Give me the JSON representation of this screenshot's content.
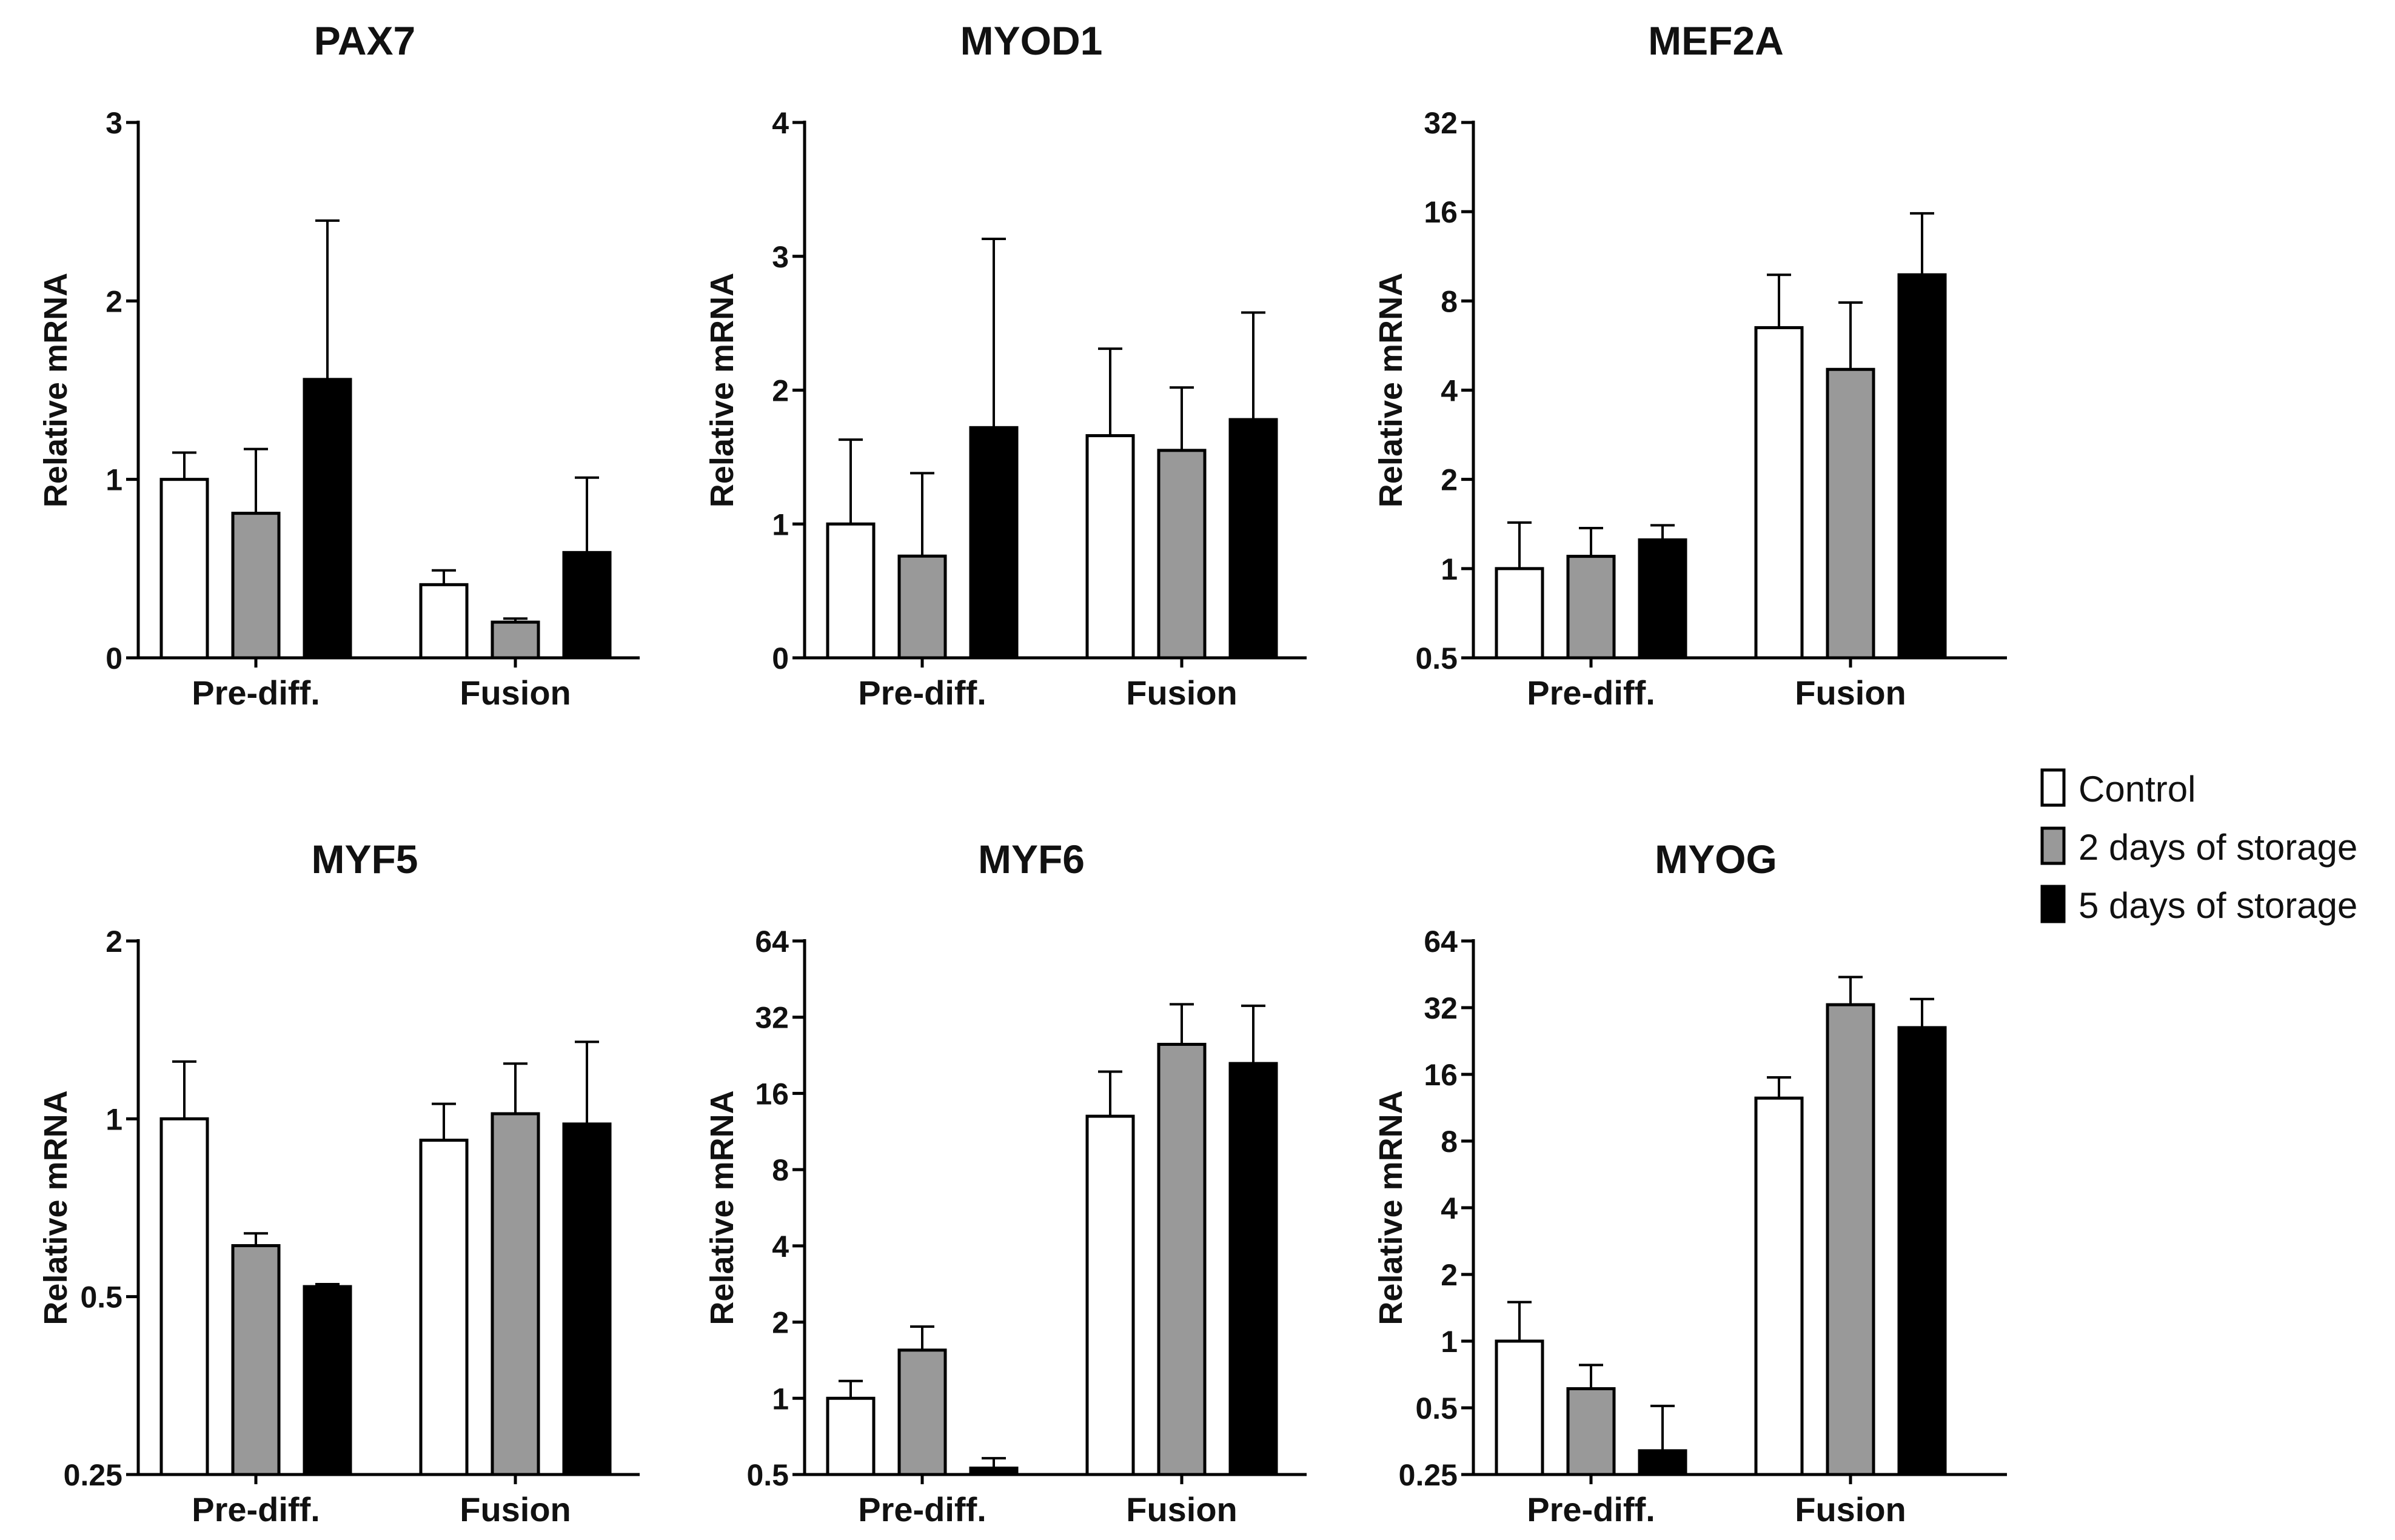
{
  "legend": {
    "position": "right",
    "entries": [
      {
        "label": "Control",
        "color": "#ffffff"
      },
      {
        "label": "2 days of storage",
        "color": "#999999"
      },
      {
        "label": "5 days of storage",
        "color": "#000000"
      }
    ]
  },
  "chart_data": [
    {
      "type": "bar",
      "title": "PAX7",
      "ylabel": "Relative mRNA",
      "yscale": "linear",
      "ylim": [
        0,
        3
      ],
      "yticks": [
        0,
        1,
        2,
        3
      ],
      "ytick_labels": [
        "0",
        "1",
        "2",
        "3"
      ],
      "categories": [
        "Pre-diff.",
        "Fusion"
      ],
      "series": [
        {
          "name": "Control",
          "values": [
            1.0,
            0.41
          ],
          "errors": [
            0.15,
            0.08
          ]
        },
        {
          "name": "2 days of storage",
          "values": [
            0.81,
            0.2
          ],
          "errors": [
            0.36,
            0.02
          ]
        },
        {
          "name": "5 days of storage",
          "values": [
            1.56,
            0.59
          ],
          "errors": [
            0.89,
            0.42
          ]
        }
      ]
    },
    {
      "type": "bar",
      "title": "MYOD1",
      "ylabel": "Relative mRNA",
      "yscale": "linear",
      "ylim": [
        0,
        4
      ],
      "yticks": [
        0,
        1,
        2,
        3,
        4
      ],
      "ytick_labels": [
        "0",
        "1",
        "2",
        "3",
        "4"
      ],
      "categories": [
        "Pre-diff.",
        "Fusion"
      ],
      "series": [
        {
          "name": "Control",
          "values": [
            1.0,
            1.66
          ],
          "errors": [
            0.63,
            0.65
          ]
        },
        {
          "name": "2 days of storage",
          "values": [
            0.76,
            1.55
          ],
          "errors": [
            0.62,
            0.47
          ]
        },
        {
          "name": "5 days of storage",
          "values": [
            1.72,
            1.78
          ],
          "errors": [
            1.41,
            0.8
          ]
        }
      ]
    },
    {
      "type": "bar",
      "title": "MEF2A",
      "ylabel": "Relative mRNA",
      "yscale": "log2",
      "ylim": [
        0.5,
        32
      ],
      "yticks": [
        0.5,
        1,
        2,
        4,
        8,
        16,
        32
      ],
      "ytick_labels": [
        "0.5",
        "1",
        "2",
        "4",
        "8",
        "16",
        "32"
      ],
      "categories": [
        "Pre-diff.",
        "Fusion"
      ],
      "series": [
        {
          "name": "Control",
          "values": [
            1.0,
            6.5
          ],
          "errors": [
            0.43,
            3.3
          ]
        },
        {
          "name": "2 days of storage",
          "values": [
            1.1,
            4.7
          ],
          "errors": [
            0.27,
            3.2
          ]
        },
        {
          "name": "5 days of storage",
          "values": [
            1.25,
            9.8
          ],
          "errors": [
            0.15,
            6.0
          ]
        }
      ]
    },
    {
      "type": "bar",
      "title": "MYF5",
      "ylabel": "Relative mRNA",
      "yscale": "log2",
      "ylim": [
        0.25,
        2
      ],
      "yticks": [
        0.25,
        0.5,
        1,
        2
      ],
      "ytick_labels": [
        "0.25",
        "0.5",
        "1",
        "2"
      ],
      "categories": [
        "Pre-diff.",
        "Fusion"
      ],
      "series": [
        {
          "name": "Control",
          "values": [
            1.0,
            0.92
          ],
          "errors": [
            0.25,
            0.14
          ]
        },
        {
          "name": "2 days of storage",
          "values": [
            0.61,
            1.02
          ],
          "errors": [
            0.03,
            0.22
          ]
        },
        {
          "name": "5 days of storage",
          "values": [
            0.52,
            0.98
          ],
          "errors": [
            0.005,
            0.37
          ]
        }
      ]
    },
    {
      "type": "bar",
      "title": "MYF6",
      "ylabel": "Relative mRNA",
      "yscale": "log2",
      "ylim": [
        0.5,
        64
      ],
      "yticks": [
        0.5,
        1,
        2,
        4,
        8,
        16,
        32,
        64
      ],
      "ytick_labels": [
        "0.5",
        "1",
        "2",
        "4",
        "8",
        "16",
        "32",
        "64"
      ],
      "categories": [
        "Pre-diff.",
        "Fusion"
      ],
      "series": [
        {
          "name": "Control",
          "values": [
            1.0,
            13.0
          ],
          "errors": [
            0.17,
            6.5
          ]
        },
        {
          "name": "2 days of storage",
          "values": [
            1.55,
            25.0
          ],
          "errors": [
            0.37,
            11.0
          ]
        },
        {
          "name": "5 days of storage",
          "values": [
            0.53,
            21.0
          ],
          "errors": [
            0.05,
            14.5
          ]
        }
      ]
    },
    {
      "type": "bar",
      "title": "MYOG",
      "ylabel": "Relative mRNA",
      "yscale": "log2",
      "ylim": [
        0.25,
        64
      ],
      "yticks": [
        0.25,
        0.5,
        1,
        2,
        4,
        8,
        16,
        32,
        64
      ],
      "ytick_labels": [
        "0.25",
        "0.5",
        "1",
        "2",
        "4",
        "8",
        "16",
        "32",
        "64"
      ],
      "categories": [
        "Pre-diff.",
        "Fusion"
      ],
      "series": [
        {
          "name": "Control",
          "values": [
            1.0,
            12.5
          ],
          "errors": [
            0.5,
            3.0
          ]
        },
        {
          "name": "2 days of storage",
          "values": [
            0.61,
            33.0
          ],
          "errors": [
            0.17,
            11.0
          ]
        },
        {
          "name": "5 days of storage",
          "values": [
            0.32,
            26.0
          ],
          "errors": [
            0.19,
            9.0
          ]
        }
      ]
    }
  ]
}
